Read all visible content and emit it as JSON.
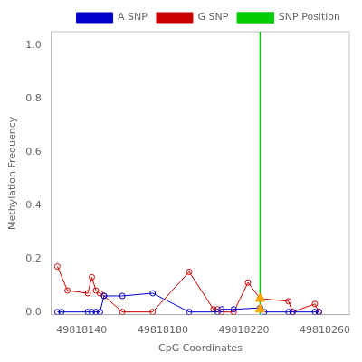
{
  "chart_data": {
    "type": "line",
    "xlabel": "CpG Coordinates",
    "ylabel": "Methylation Frequency",
    "xlim": [
      49818125,
      49818272
    ],
    "ylim": [
      -0.01,
      1.05
    ],
    "xticks": [
      49818140,
      49818180,
      49818220,
      49818260
    ],
    "yticks": [
      {
        "value": 0,
        "label": "0.0"
      },
      0.2,
      0.4,
      0.6,
      0.8,
      {
        "value": 1,
        "label": "1.0"
      }
    ],
    "grid": false,
    "legend": "upper right",
    "series": [
      {
        "name": "A SNP",
        "color": "#0000CC",
        "marker": "circle-open",
        "line_style": "solid",
        "x": [
          49818128,
          49818130,
          49818143,
          49818145,
          49818147,
          49818149,
          49818151,
          49818160,
          49818175,
          49818193,
          49818207,
          49818209,
          49818215,
          49818228,
          49818230,
          49818242,
          49818244,
          49818255,
          49818257
        ],
        "values": [
          0.0,
          0.0,
          0.0,
          0.0,
          0.0,
          0.0,
          0.06,
          0.06,
          0.07,
          0.0,
          0.0,
          0.01,
          0.01,
          0.015,
          0.0,
          0.0,
          0.0,
          0.0,
          0.0
        ]
      },
      {
        "name": "G SNP",
        "color": "#CC0000",
        "marker": "circle-open",
        "line_style": "solid",
        "x": [
          49818128,
          49818133,
          49818143,
          49818145,
          49818147,
          49818149,
          49818151,
          49818160,
          49818175,
          49818193,
          49818205,
          49818207,
          49818209,
          49818215,
          49818222,
          49818228,
          49818242,
          49818244,
          49818255,
          49818257
        ],
        "values": [
          0.17,
          0.08,
          0.07,
          0.13,
          0.08,
          0.07,
          0.06,
          0.0,
          0.0,
          0.15,
          0.01,
          0.01,
          0.0,
          0.0,
          0.11,
          0.05,
          0.04,
          0.0,
          0.03,
          0.0
        ]
      },
      {
        "type": "scatter",
        "color": "#FFA500",
        "marker": "triangle",
        "x": [
          49818228,
          49818228
        ],
        "values": [
          0.05,
          0.01
        ]
      }
    ],
    "vlines": [
      {
        "name": "SNP Position",
        "color": "#00CC00",
        "x": 49818228
      }
    ]
  }
}
